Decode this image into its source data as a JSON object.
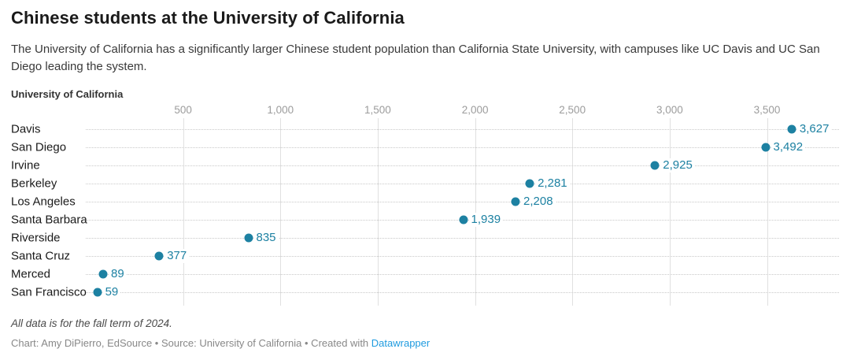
{
  "header": {
    "title": "Chinese students at the University of California",
    "description": "The University of California has a significantly larger Chinese student population than California State University, with campuses like UC Davis and UC San Diego leading the system."
  },
  "chart_data": {
    "type": "scatter",
    "subtype": "dot-plot",
    "title": "University of California",
    "categories": [
      "Davis",
      "San Diego",
      "Irvine",
      "Berkeley",
      "Los Angeles",
      "Santa Barbara",
      "Riverside",
      "Santa Cruz",
      "Merced",
      "San Francisco"
    ],
    "values": [
      3627,
      3492,
      2925,
      2281,
      2208,
      1939,
      835,
      377,
      89,
      59
    ],
    "value_labels": [
      "3,627",
      "3,492",
      "2,925",
      "2,281",
      "2,208",
      "1,939",
      "835",
      "377",
      "89",
      "59"
    ],
    "xlabel": "",
    "ylabel": "",
    "xlim": [
      0,
      3870
    ],
    "x_ticks": [
      500,
      1000,
      1500,
      2000,
      2500,
      3000,
      3500
    ],
    "x_tick_labels": [
      "500",
      "1,000",
      "1,500",
      "2,000",
      "2,500",
      "3,000",
      "3,500"
    ],
    "grid": true,
    "legend": "none",
    "dot_color": "#1d81a2"
  },
  "footer": {
    "note": "All data is for the fall term of 2024.",
    "byline_prefix": "Chart: Amy DiPierro, EdSource • Source: University of California • Created with ",
    "link_label": "Datawrapper"
  },
  "colors": {
    "accent": "#1d81a2",
    "link": "#1f9bdf",
    "tick_label": "#9c9c9c",
    "gridline": "#e0e0e0"
  }
}
